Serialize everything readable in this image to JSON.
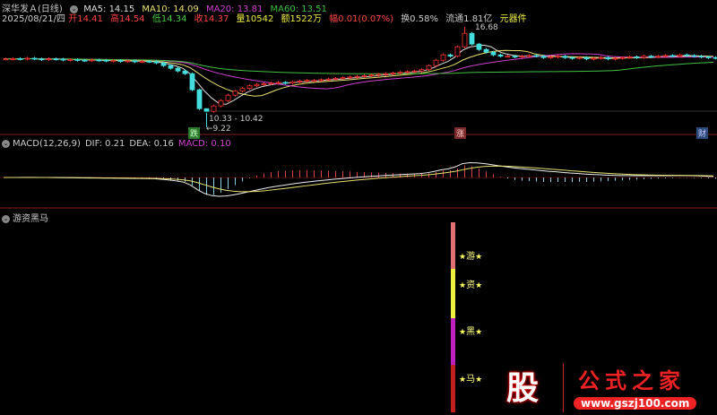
{
  "header": {
    "stock": "深华发Ａ",
    "period": "(日线)",
    "ma": [
      {
        "label": "MA5: 14.15",
        "color": "#dddddd"
      },
      {
        "label": "MA10: 14.09",
        "color": "#e8e070"
      },
      {
        "label": "MA20: 13.81",
        "color": "#d040d0"
      },
      {
        "label": "MA60: 13.51",
        "color": "#40c040"
      }
    ],
    "date": "2025/08/21/四",
    "open": "开14.41",
    "high": "高14.54",
    "low": "低14.34",
    "close": "收14.37",
    "vol": "量10542",
    "amount": "额1522万",
    "change": "幅0.01(0.07%)",
    "turnover": "换0.58%",
    "float": "流通1.81亿",
    "sector": "元器件"
  },
  "annotations": {
    "high": "16.68",
    "range": "10.33 - 10.42",
    "low": "9.22",
    "tag_down": "跌",
    "tag_up": "涨",
    "tag_fin": "财"
  },
  "macd": {
    "title": "MACD(12,26,9)",
    "dif": "DIF: 0.21",
    "dea": "DEA: 0.16",
    "macd": "MACD: 0.10"
  },
  "indicator": {
    "title": "游资黑马",
    "labels": [
      "游",
      "资",
      "黑",
      "马"
    ],
    "colors": [
      "#e07070",
      "#f0f040",
      "#c020c0",
      "#c02020"
    ]
  },
  "watermark": {
    "logo": "股",
    "name": "公式之家",
    "url": "www.gszj100.com"
  },
  "chart_data": {
    "type": "candlestick",
    "closes": [
      14.3,
      14.32,
      14.28,
      14.35,
      14.3,
      14.25,
      14.3,
      14.28,
      14.22,
      14.25,
      14.2,
      14.18,
      14.22,
      14.2,
      14.15,
      14.18,
      14.12,
      14.15,
      14.1,
      14.12,
      14.1,
      14.0,
      13.8,
      13.6,
      13.4,
      13.2,
      12.0,
      10.6,
      10.4,
      10.8,
      11.2,
      11.6,
      11.9,
      12.1,
      12.3,
      12.4,
      12.45,
      12.5,
      12.55,
      12.5,
      12.6,
      12.65,
      12.7,
      12.7,
      12.75,
      12.8,
      12.85,
      12.9,
      12.95,
      13.0,
      13.05,
      13.1,
      13.15,
      13.2,
      13.25,
      13.3,
      13.35,
      13.4,
      13.5,
      13.8,
      14.2,
      14.6,
      14.5,
      15.2,
      16.2,
      15.4,
      15.0,
      14.8,
      14.6,
      14.5,
      14.5,
      14.45,
      14.5,
      14.55,
      14.5,
      14.4,
      14.45,
      14.5,
      14.4,
      14.35,
      14.4,
      14.3,
      14.35,
      14.4,
      14.3,
      14.35,
      14.4,
      14.45,
      14.4,
      14.5,
      14.45,
      14.5,
      14.55,
      14.5,
      14.6,
      14.55,
      14.5,
      14.45,
      14.4,
      14.37
    ],
    "high_mark": 16.68,
    "low_mark": 9.22
  }
}
